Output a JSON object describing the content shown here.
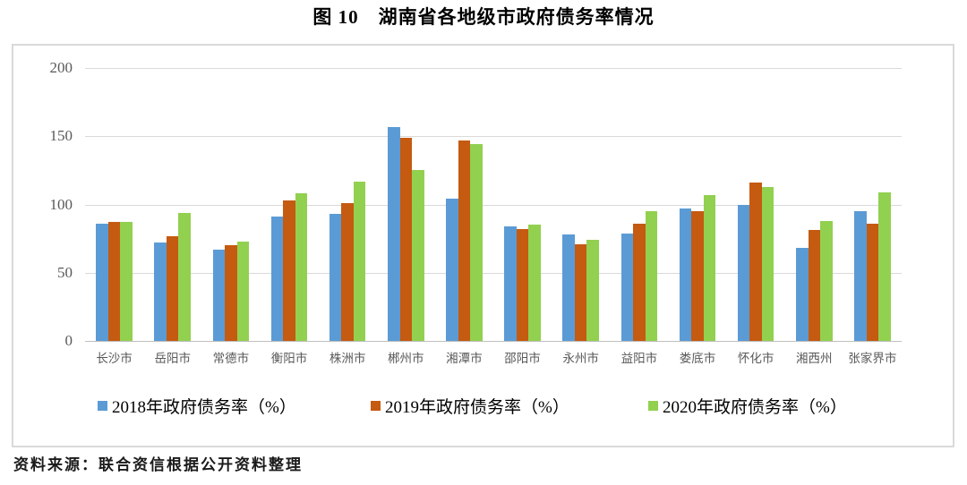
{
  "title": "图 10　湖南省各地级市政府债务率情况",
  "source": "资料来源：联合资信根据公开资料整理",
  "colors": {
    "series_2018": "#5B9BD5",
    "series_2019": "#C55A11",
    "series_2020": "#92D050",
    "gridline": "#D9D9D9",
    "axis_line": "#BFBFBF",
    "axis_text": "#595959",
    "chart_border": "#D9D9D9"
  },
  "chart_data": {
    "type": "bar",
    "title": "图 10　湖南省各地级市政府债务率情况",
    "categories": [
      "长沙市",
      "岳阳市",
      "常德市",
      "衡阳市",
      "株洲市",
      "郴州市",
      "湘潭市",
      "邵阳市",
      "永州市",
      "益阳市",
      "娄底市",
      "怀化市",
      "湘西州",
      "张家界市"
    ],
    "series": [
      {
        "name": "2018年政府债务率（%）",
        "color": "#5B9BD5",
        "values": [
          86,
          72,
          67,
          91,
          93,
          157,
          104,
          84,
          78,
          79,
          97,
          100,
          68,
          95
        ]
      },
      {
        "name": "2019年政府债务率（%）",
        "color": "#C55A11",
        "values": [
          87,
          77,
          70,
          103,
          101,
          149,
          147,
          82,
          71,
          86,
          95,
          116,
          81,
          86
        ]
      },
      {
        "name": "2020年政府债务率（%）",
        "color": "#92D050",
        "values": [
          87,
          94,
          73,
          108,
          117,
          125,
          144,
          85,
          74,
          95,
          107,
          113,
          88,
          109
        ]
      }
    ],
    "xlabel": "",
    "ylabel": "",
    "ylim": [
      0,
      200
    ],
    "yticks": [
      0,
      50,
      100,
      150,
      200
    ],
    "grid": true,
    "legend_position": "bottom"
  }
}
